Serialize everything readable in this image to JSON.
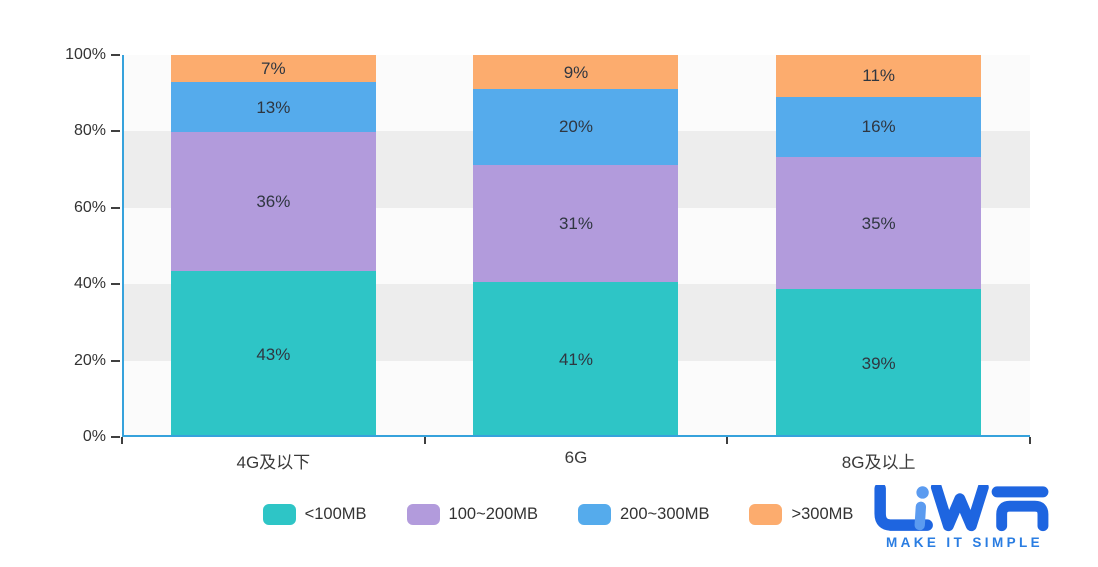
{
  "chart_data": {
    "type": "bar",
    "variant": "stacked-percent-column",
    "categories": [
      "4G及以下",
      "6G",
      "8G及以上"
    ],
    "series": [
      {
        "name": "<100MB",
        "color": "#2ec5c6",
        "values": [
          43,
          41,
          39
        ]
      },
      {
        "name": "100~200MB",
        "color": "#b29bdc",
        "values": [
          36,
          31,
          35
        ]
      },
      {
        "name": "200~300MB",
        "color": "#55abec",
        "values": [
          13,
          20,
          16
        ]
      },
      {
        "name": ">300MB",
        "color": "#fcac6e",
        "values": [
          7,
          9,
          11
        ]
      }
    ],
    "value_suffix": "%",
    "y_axis": {
      "ticks": [
        "100%",
        "80%",
        "60%",
        "40%",
        "20%",
        "0%"
      ],
      "min": 0,
      "max": 100
    },
    "title": "",
    "xlabel": "",
    "ylabel": "",
    "legend_position": "bottom",
    "grid": {
      "style": "alternating-bands",
      "band_color": "#ededed",
      "plot_background": "#fbfbfb"
    },
    "axis_color": "#36a2dc",
    "tick_color": "#3f3f3f",
    "label_color": "#333333"
  },
  "branding": {
    "logo_text": "LiWA",
    "tagline": "MAKE IT SIMPLE",
    "logo_color": "#1e65e0",
    "logo_accent_color": "#5b9bf0",
    "tagline_color": "#2a7de2"
  }
}
